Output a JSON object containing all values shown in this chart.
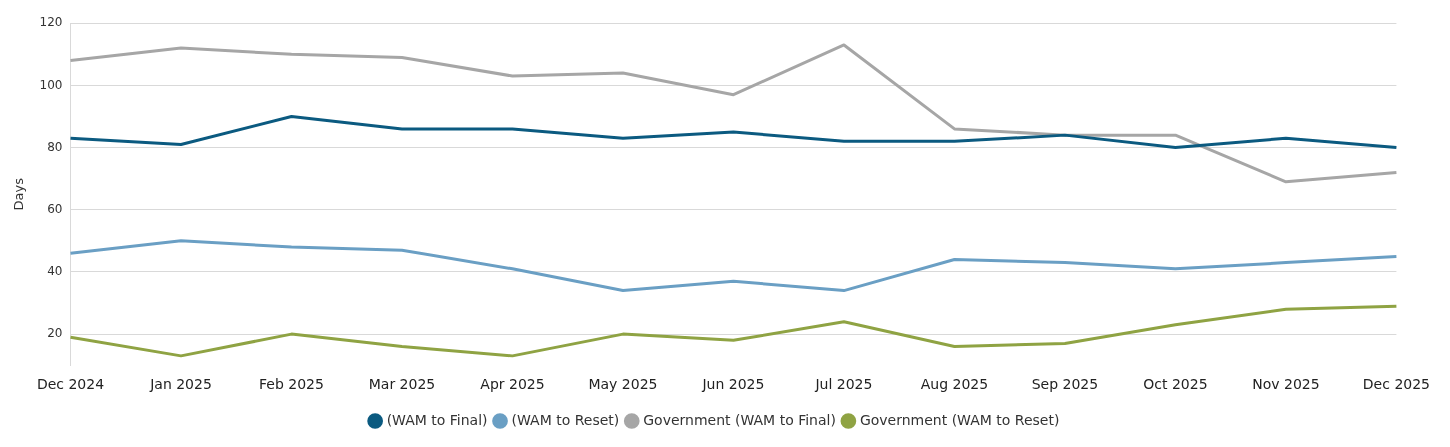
{
  "chart_data": {
    "type": "line",
    "ylabel": "Days",
    "categories": [
      "Dec 2024",
      "Jan 2025",
      "Feb 2025",
      "Mar 2025",
      "Apr 2025",
      "May 2025",
      "Jun 2025",
      "Jul 2025",
      "Aug 2025",
      "Sep 2025",
      "Oct 2025",
      "Nov 2025",
      "Dec 2025"
    ],
    "series": [
      {
        "name": "(WAM to Final)",
        "color": "#0b5a80",
        "values": [
          83,
          81,
          90,
          86,
          86,
          83,
          85,
          82,
          82,
          84,
          80,
          83,
          80
        ]
      },
      {
        "name": "(WAM to Reset)",
        "color": "#6a9fc4",
        "values": [
          46,
          50,
          48,
          47,
          41,
          34,
          37,
          34,
          44,
          43,
          41,
          43,
          45
        ]
      },
      {
        "name": "Government (WAM to Final)",
        "color": "#a6a6a6",
        "values": [
          108,
          112,
          110,
          109,
          103,
          104,
          97,
          113,
          86,
          84,
          84,
          69,
          72
        ]
      },
      {
        "name": "Government (WAM to Reset)",
        "color": "#8fa343",
        "values": [
          19,
          13,
          20,
          16,
          13,
          20,
          18,
          24,
          16,
          17,
          23,
          28,
          29
        ]
      }
    ],
    "ylim": [
      10,
      120
    ],
    "yticks": [
      20,
      40,
      60,
      80,
      100,
      120
    ],
    "grid": "y",
    "legend": "bottom",
    "marker": "none",
    "line_style": "solid"
  }
}
